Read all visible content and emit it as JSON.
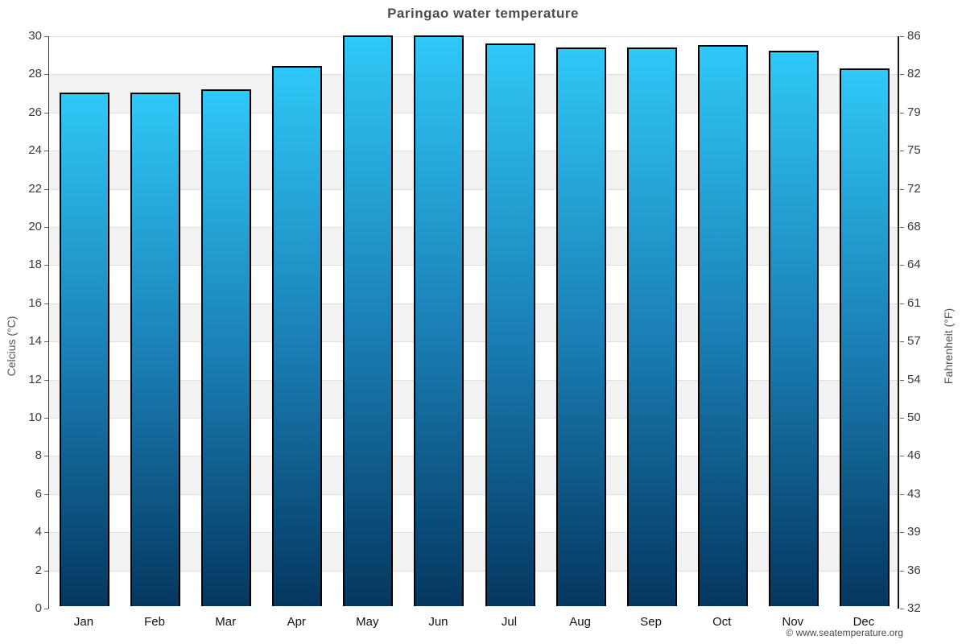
{
  "title": "Paringao water temperature",
  "copyright": "© www.seatemperature.org",
  "chart_data": {
    "type": "bar",
    "title": "Paringao water temperature",
    "categories": [
      "Jan",
      "Feb",
      "Mar",
      "Apr",
      "May",
      "Jun",
      "Jul",
      "Aug",
      "Sep",
      "Oct",
      "Nov",
      "Dec"
    ],
    "series": [
      {
        "name": "Water temperature (°C)",
        "values": [
          26.9,
          26.9,
          27.1,
          28.3,
          29.9,
          29.9,
          29.5,
          29.3,
          29.3,
          29.4,
          29.1,
          28.2
        ]
      }
    ],
    "ylabel_left": "Celcius (°C)",
    "ylabel_right": "Fahrenheit (°F)",
    "ylim_celsius": [
      0,
      30
    ],
    "celsius_ticks": [
      0,
      2,
      4,
      6,
      8,
      10,
      12,
      14,
      16,
      18,
      20,
      22,
      24,
      26,
      28,
      30
    ],
    "fahrenheit_ticks": [
      32,
      36,
      39,
      43,
      46,
      50,
      54,
      57,
      61,
      64,
      68,
      72,
      75,
      79,
      82,
      86
    ],
    "grid": true,
    "legend_position": "none",
    "band_color": "#f2f2f2",
    "gridline_color": "#e0e0e0",
    "bar_border_color": "#000000",
    "bar_gradient_top": "#2fc8f7",
    "bar_gradient_mid": "#1a7eb4",
    "bar_gradient_bottom": "#04375f"
  }
}
